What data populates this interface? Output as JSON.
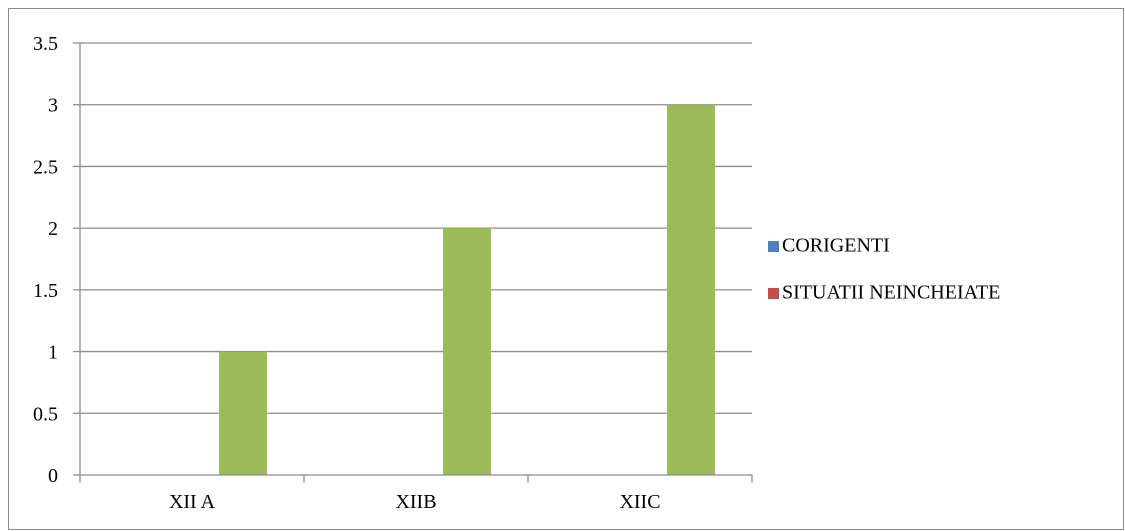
{
  "chart_data": {
    "type": "bar",
    "categories": [
      "XII A",
      "XIIB",
      "XIIC"
    ],
    "series": [
      {
        "name": "CORIGENTI",
        "color": "#4f81bd",
        "values": [
          0,
          0,
          0
        ]
      },
      {
        "name": "SITUATII NEINCHEIATE",
        "color": "#c0504d",
        "values": [
          0,
          0,
          0
        ]
      },
      {
        "color": "#9bbb59",
        "values": [
          1,
          2,
          3
        ]
      }
    ],
    "ylim": [
      0,
      3.5
    ],
    "yticks": [
      "0",
      "0.5",
      "1",
      "1.5",
      "2",
      "2.5",
      "3",
      "3.5"
    ],
    "grid": true,
    "legend_position": "right",
    "gridline_color": "#8c8c8c",
    "axis_color": "#8c8c8c"
  }
}
